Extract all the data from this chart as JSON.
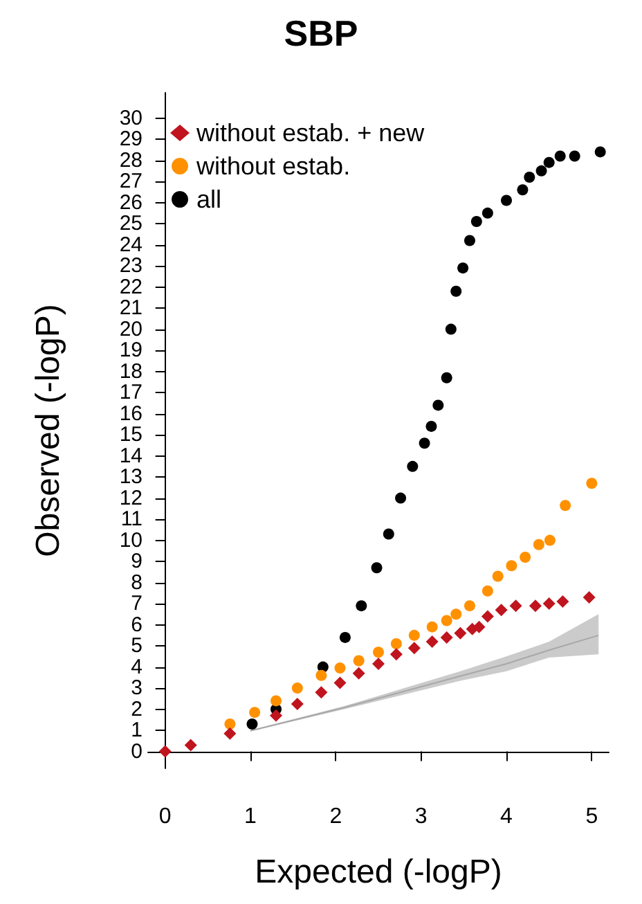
{
  "chart_data": {
    "type": "scatter",
    "title": "SBP",
    "xlabel": "Expected (-logP)",
    "ylabel": "Observed (-logP)",
    "xlim": [
      -0.2,
      5.2
    ],
    "xticks": [
      0,
      1,
      2,
      3,
      4,
      5
    ],
    "ylim": [
      -0.8,
      31.2
    ],
    "yticks": [
      0,
      1,
      2,
      3,
      4,
      5,
      6,
      7,
      8,
      9,
      10,
      11,
      12,
      13,
      14,
      15,
      16,
      17,
      18,
      19,
      20,
      21,
      22,
      23,
      24,
      25,
      26,
      27,
      28,
      29,
      30
    ],
    "grid": false,
    "legend": "top left",
    "series": [
      {
        "name": "without estab. + new",
        "color": "#c0141e",
        "marker": "diamond",
        "x": [
          0,
          0.3,
          0.76,
          1.3,
          1.55,
          1.83,
          2.05,
          2.27,
          2.5,
          2.71,
          2.92,
          3.13,
          3.3,
          3.46,
          3.6,
          3.68,
          3.78,
          3.94,
          4.11,
          4.34,
          4.5,
          4.66,
          4.97
        ],
        "values": [
          0,
          0.3,
          0.85,
          1.7,
          2.25,
          2.8,
          3.25,
          3.7,
          4.15,
          4.6,
          4.9,
          5.2,
          5.4,
          5.6,
          5.8,
          5.9,
          6.4,
          6.7,
          6.9,
          6.9,
          7.0,
          7.1,
          7.3
        ]
      },
      {
        "name": "without estab.",
        "color": "#ff9100",
        "marker": "circle",
        "x": [
          0.76,
          1.05,
          1.3,
          1.55,
          1.83,
          2.05,
          2.27,
          2.5,
          2.71,
          2.92,
          3.13,
          3.3,
          3.41,
          3.57,
          3.78,
          3.9,
          4.06,
          4.22,
          4.38,
          4.51,
          4.69,
          5.0
        ],
        "values": [
          1.3,
          1.85,
          2.4,
          3.0,
          3.6,
          3.95,
          4.3,
          4.7,
          5.1,
          5.5,
          5.9,
          6.2,
          6.5,
          6.9,
          7.6,
          8.3,
          8.8,
          9.2,
          9.8,
          10.0,
          11.65,
          12.7
        ]
      },
      {
        "name": "all",
        "color": "#000000",
        "marker": "circle",
        "x": [
          1.02,
          1.3,
          1.85,
          2.11,
          2.3,
          2.48,
          2.62,
          2.76,
          2.9,
          3.04,
          3.12,
          3.2,
          3.3,
          3.35,
          3.41,
          3.49,
          3.57,
          3.65,
          3.78,
          4.0,
          4.19,
          4.27,
          4.41,
          4.5,
          4.63,
          4.8,
          5.1
        ],
        "values": [
          1.3,
          2.0,
          4.0,
          5.4,
          6.9,
          8.7,
          10.3,
          12.0,
          13.5,
          14.6,
          15.4,
          16.4,
          17.7,
          20.0,
          21.8,
          22.9,
          24.2,
          25.1,
          25.5,
          26.1,
          26.6,
          27.2,
          27.5,
          27.9,
          28.2,
          28.2,
          28.4
        ]
      },
      {
        "type": "line",
        "color": "#a8a8a8",
        "x": [
          1.0,
          2.1,
          3.46,
          4.0,
          4.5,
          5.08
        ],
        "values": [
          0.98,
          2.08,
          3.57,
          4.15,
          4.8,
          5.5
        ],
        "lower": [
          0.95,
          2.0,
          3.35,
          3.8,
          4.45,
          4.6
        ],
        "upper": [
          1.0,
          2.15,
          3.8,
          4.5,
          5.2,
          6.5
        ]
      }
    ]
  }
}
